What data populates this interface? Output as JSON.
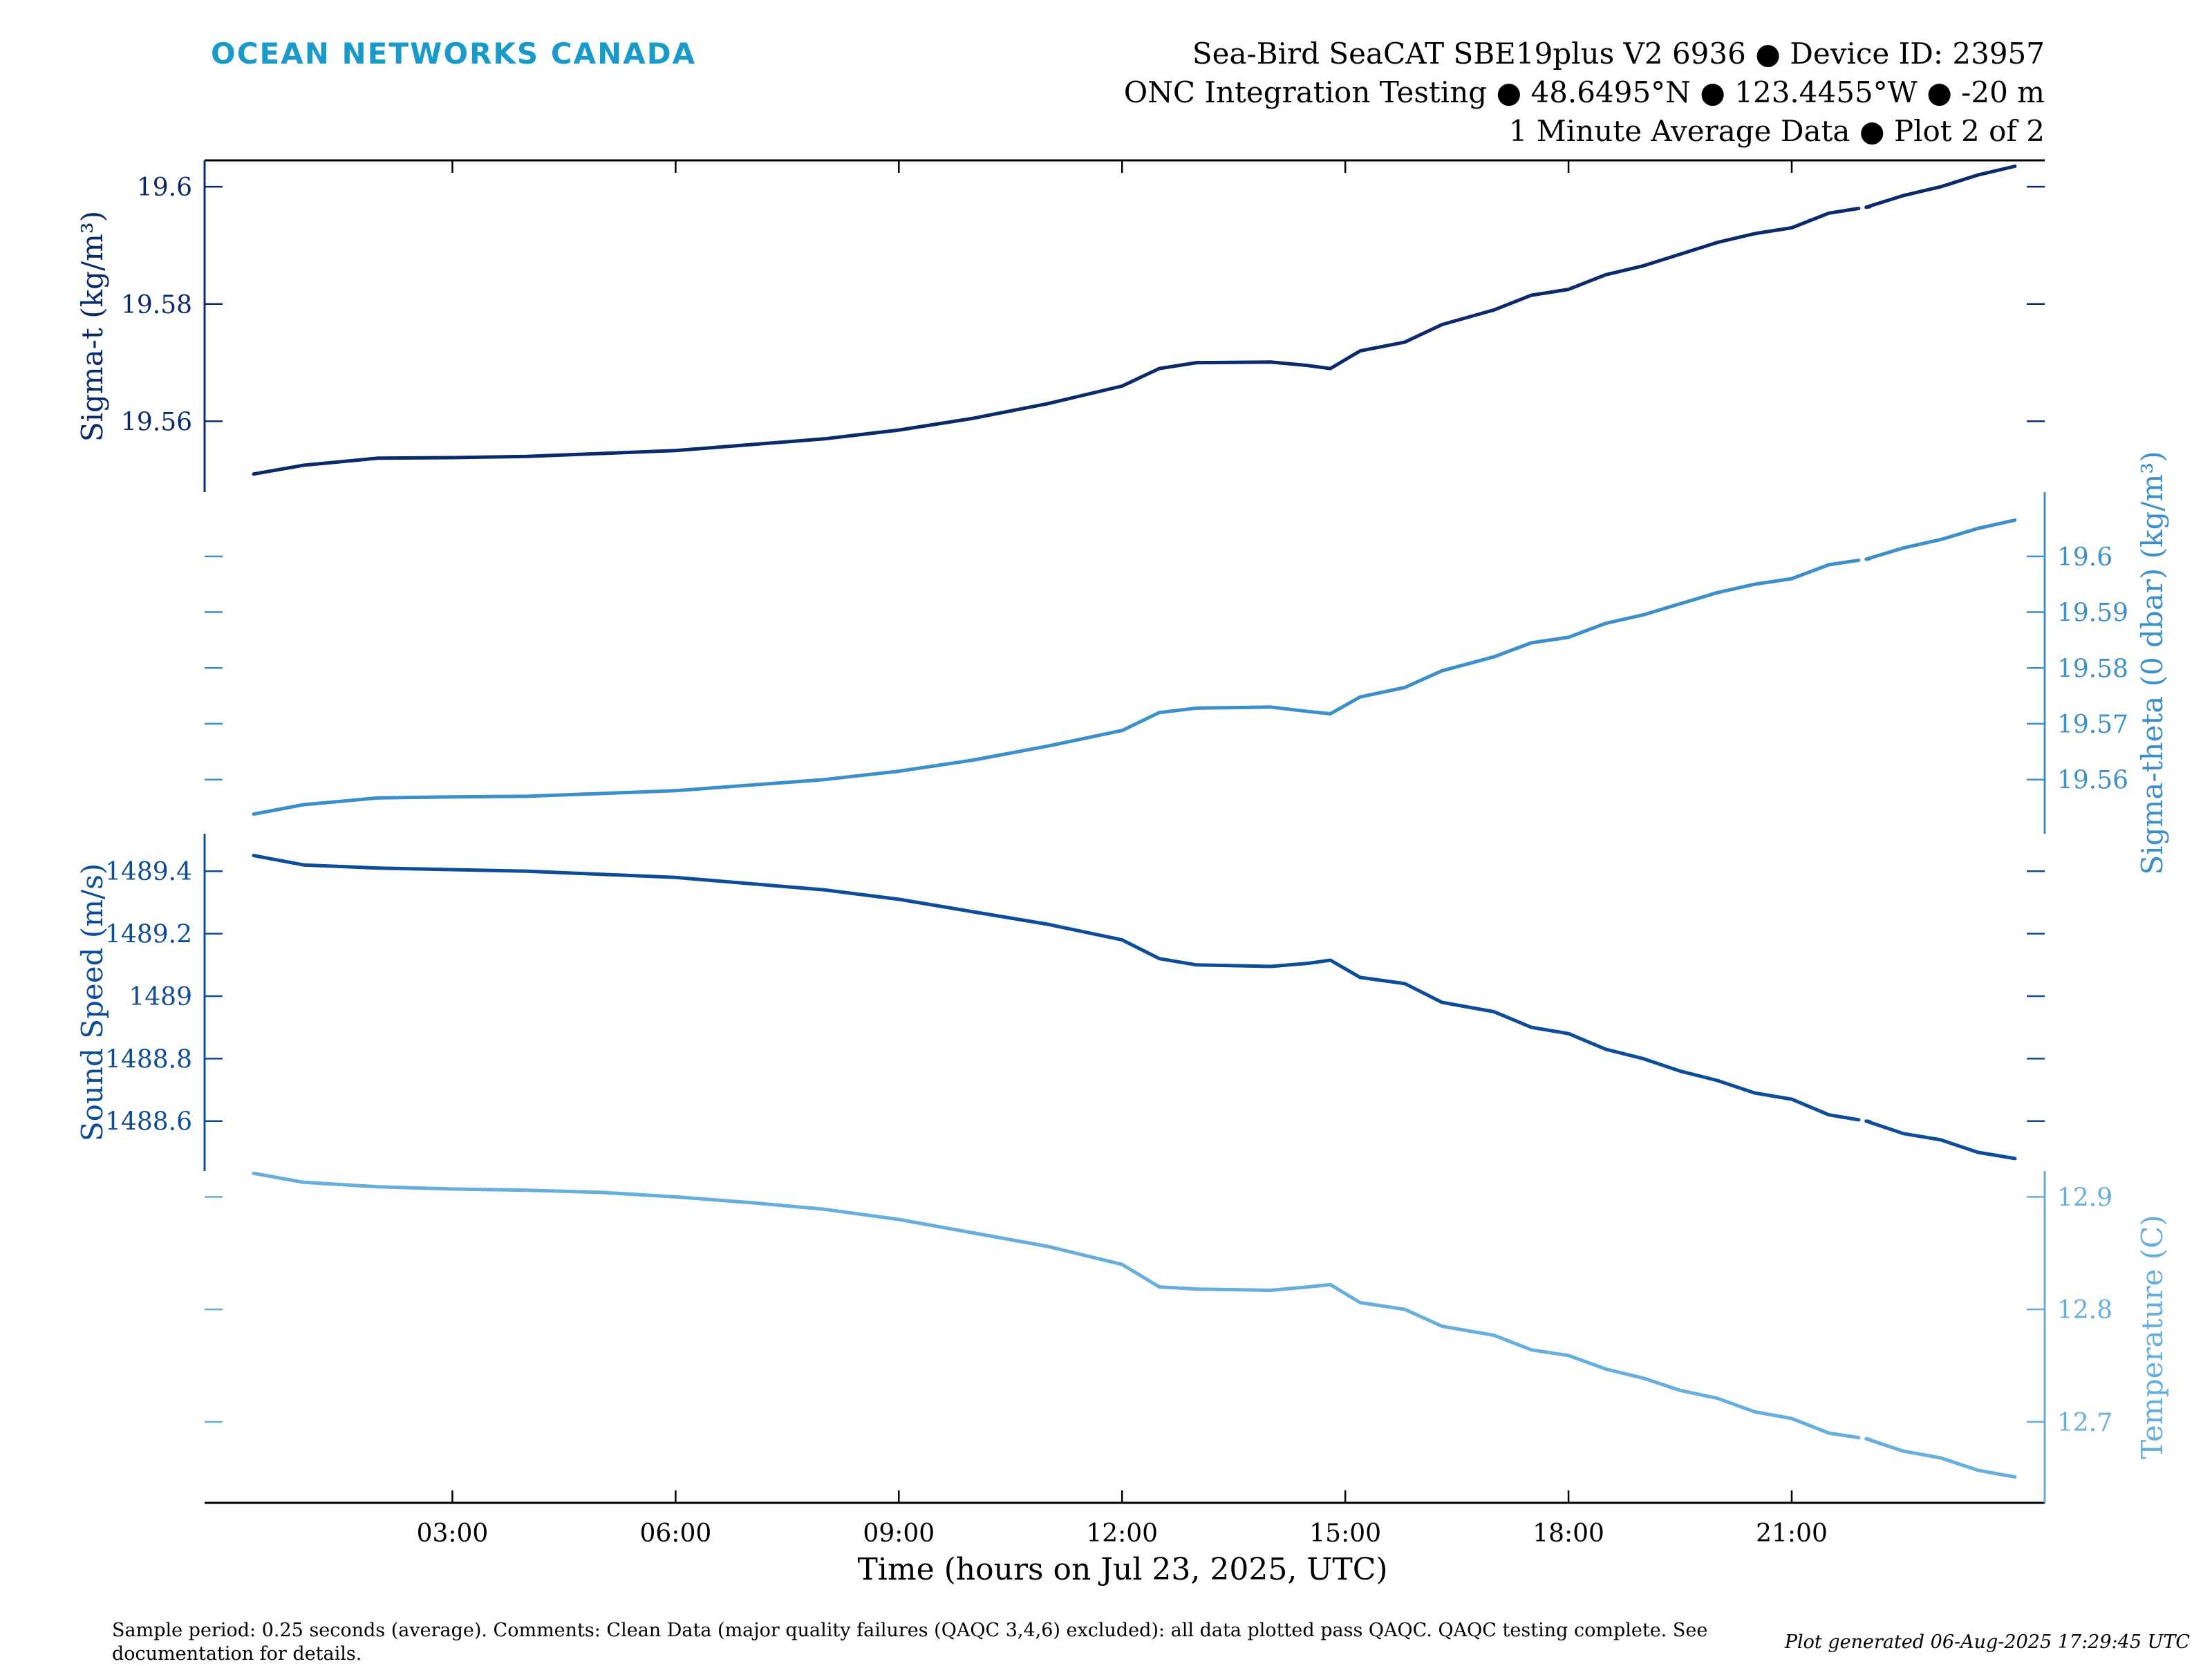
{
  "header": {
    "org_name": "OCEAN NETWORKS CANADA",
    "title_lines": [
      "Sea-Bird SeaCAT SBE19plus V2 6936 ● Device ID: 23957",
      "ONC Integration Testing ● 48.6495°N ● 123.4455°W ● -20 m",
      "1 Minute Average Data ● Plot 2 of 2"
    ]
  },
  "colors": {
    "logo": "#1a9ac9",
    "sigma_t": "#0b2a6b",
    "sigma_theta": "#3d8fc9",
    "sound_speed": "#0d4c98",
    "temperature": "#66aedb",
    "frame": "#000000"
  },
  "chart_data": {
    "type": "line",
    "xlabel": "Time (hours on Jul 23, 2025, UTC)",
    "x_tick_labels": [
      "03:00",
      "06:00",
      "09:00",
      "12:00",
      "15:00",
      "18:00",
      "21:00"
    ],
    "x_ticks_hours": [
      3,
      6,
      9,
      12,
      15,
      18,
      21
    ],
    "xlim_hours": [
      -0.33,
      24.4
    ],
    "x_hours": [
      0.33,
      1,
      2,
      3,
      4,
      5,
      6,
      7,
      8,
      9,
      10,
      11,
      12,
      12.5,
      13,
      14,
      14.5,
      14.8,
      15.2,
      15.8,
      16.3,
      17,
      17.5,
      18,
      18.5,
      19,
      19.5,
      20,
      20.5,
      21,
      21.5,
      22,
      22.5,
      23,
      23.5,
      24.0
    ],
    "series": [
      {
        "name": "Sigma-t",
        "ylabel": "Sigma-t (kg/m³)",
        "axis_side": "left",
        "ytick_labels": [
          "19.56",
          "19.58",
          "19.6"
        ],
        "ylim": [
          19.5479,
          19.6045
        ],
        "values": [
          19.551,
          19.5525,
          19.5537,
          19.5538,
          19.554,
          19.5545,
          19.555,
          19.556,
          19.557,
          19.5585,
          19.5605,
          19.563,
          19.566,
          19.569,
          19.57,
          19.5701,
          19.5695,
          19.569,
          19.572,
          19.5735,
          19.5765,
          19.579,
          19.5815,
          19.5825,
          19.585,
          19.5865,
          19.5885,
          19.5905,
          19.592,
          19.593,
          19.5955,
          19.5965,
          19.5985,
          19.6,
          19.602,
          19.6035
        ],
        "gap_hours": [
          21.9,
          22.05
        ]
      },
      {
        "name": "Sigma-theta (0 dbar)",
        "ylabel": "Sigma-theta (0 dbar) (kg/m³)",
        "axis_side": "right",
        "ytick_labels": [
          "19.56",
          "19.57",
          "19.58",
          "19.59",
          "19.6"
        ],
        "ylim": [
          19.5503,
          19.6115
        ],
        "values": [
          19.5538,
          19.5555,
          19.5567,
          19.5569,
          19.557,
          19.5575,
          19.558,
          19.559,
          19.56,
          19.5615,
          19.5635,
          19.566,
          19.5688,
          19.572,
          19.5728,
          19.573,
          19.5722,
          19.5718,
          19.5748,
          19.5765,
          19.5795,
          19.582,
          19.5845,
          19.5855,
          19.588,
          19.5895,
          19.5915,
          19.5935,
          19.595,
          19.596,
          19.5985,
          19.5995,
          19.6015,
          19.603,
          19.605,
          19.6065
        ],
        "gap_hours": [
          21.9,
          22.05
        ]
      },
      {
        "name": "Sound Speed",
        "ylabel": "Sound Speed (m/s)",
        "axis_side": "left",
        "ytick_labels": [
          "1488.6",
          "1488.8",
          "1489",
          "1489.2",
          "1489.4"
        ],
        "ylim": [
          1488.44,
          1489.52
        ],
        "values": [
          1489.45,
          1489.42,
          1489.41,
          1489.405,
          1489.4,
          1489.39,
          1489.38,
          1489.36,
          1489.34,
          1489.31,
          1489.27,
          1489.23,
          1489.18,
          1489.12,
          1489.1,
          1489.095,
          1489.105,
          1489.115,
          1489.06,
          1489.04,
          1488.98,
          1488.95,
          1488.9,
          1488.88,
          1488.83,
          1488.8,
          1488.76,
          1488.73,
          1488.69,
          1488.67,
          1488.62,
          1488.6,
          1488.56,
          1488.54,
          1488.5,
          1488.48
        ],
        "gap_hours": [
          21.9,
          22.05
        ]
      },
      {
        "name": "Temperature",
        "ylabel": "Temperature (C)",
        "axis_side": "right",
        "ytick_labels": [
          "12.7",
          "12.8",
          "12.9"
        ],
        "ylim": [
          12.628,
          12.923
        ],
        "values": [
          12.921,
          12.913,
          12.909,
          12.907,
          12.906,
          12.904,
          12.9,
          12.895,
          12.889,
          12.88,
          12.868,
          12.856,
          12.84,
          12.82,
          12.818,
          12.817,
          12.82,
          12.822,
          12.806,
          12.8,
          12.785,
          12.777,
          12.764,
          12.759,
          12.747,
          12.739,
          12.728,
          12.721,
          12.709,
          12.703,
          12.69,
          12.685,
          12.674,
          12.668,
          12.657,
          12.651
        ],
        "gap_hours": [
          21.9,
          22.05
        ]
      }
    ]
  },
  "footer": {
    "comments": "Sample period: 0.25 seconds (average). Comments: Clean Data (major quality failures (QAQC 3,4,6) excluded): all data plotted pass QAQC. QAQC testing complete. See documentation for details.",
    "generated": "Plot generated 06-Aug-2025 17:29:45 UTC"
  }
}
